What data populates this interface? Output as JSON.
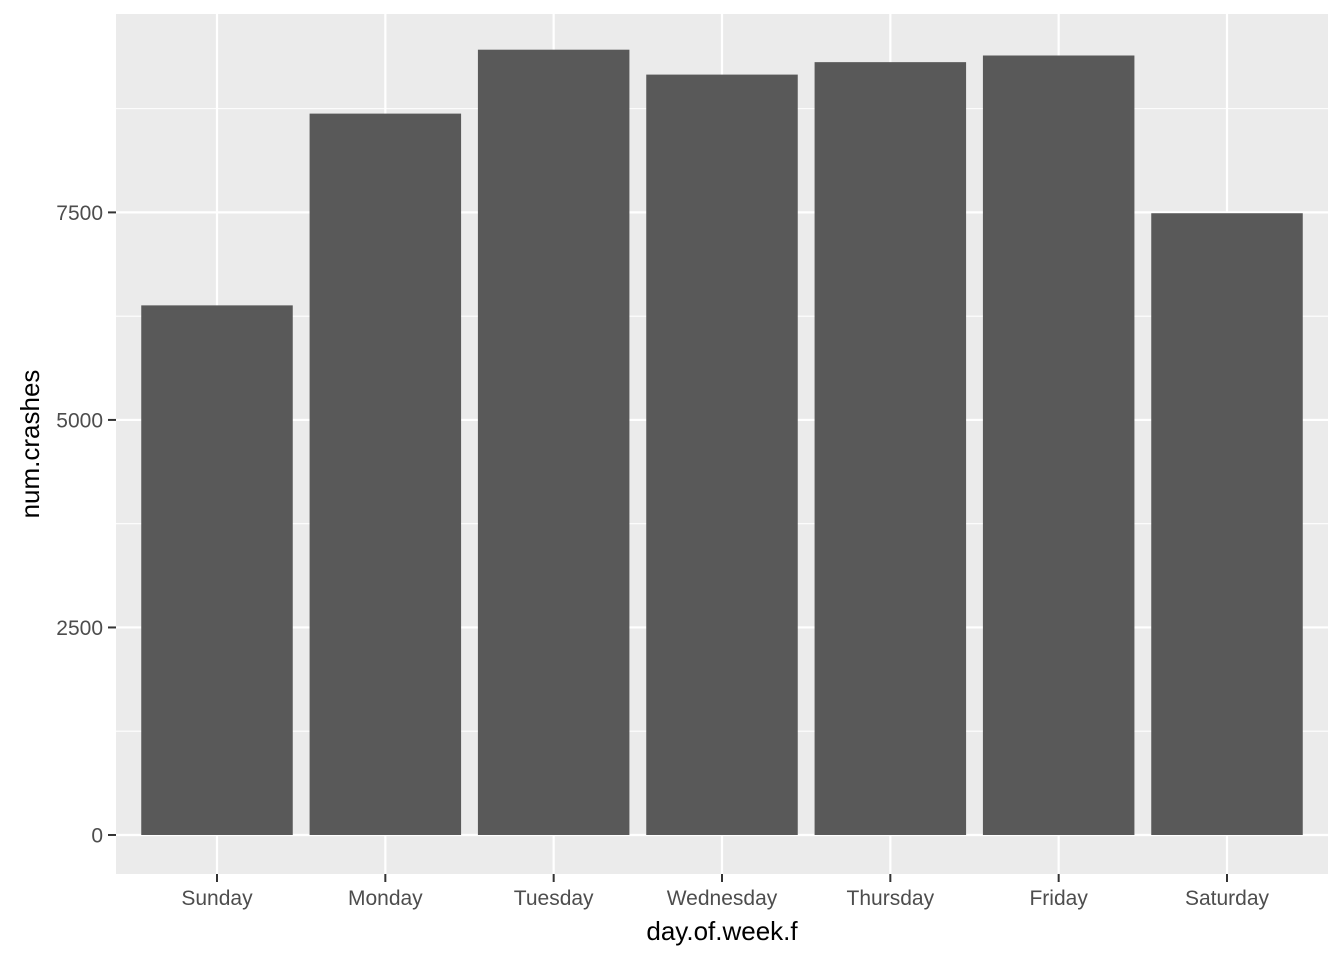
{
  "chart_data": {
    "type": "bar",
    "categories": [
      "Sunday",
      "Monday",
      "Tuesday",
      "Wednesday",
      "Thursday",
      "Friday",
      "Saturday"
    ],
    "values": [
      6380,
      8690,
      9460,
      9160,
      9310,
      9390,
      7490
    ],
    "xlabel": "day.of.week.f",
    "ylabel": "num.crashes",
    "ylim": [
      -470,
      9890
    ],
    "yticks": [
      0,
      2500,
      5000,
      7500
    ],
    "yticks_labels": [
      "0",
      "2500",
      "5000",
      "7500"
    ],
    "grid": true,
    "legend": "none",
    "colors": {
      "panel": "#EBEBEB",
      "bar": "#595959",
      "grid": "#FFFFFF",
      "tick": "#333333"
    }
  }
}
